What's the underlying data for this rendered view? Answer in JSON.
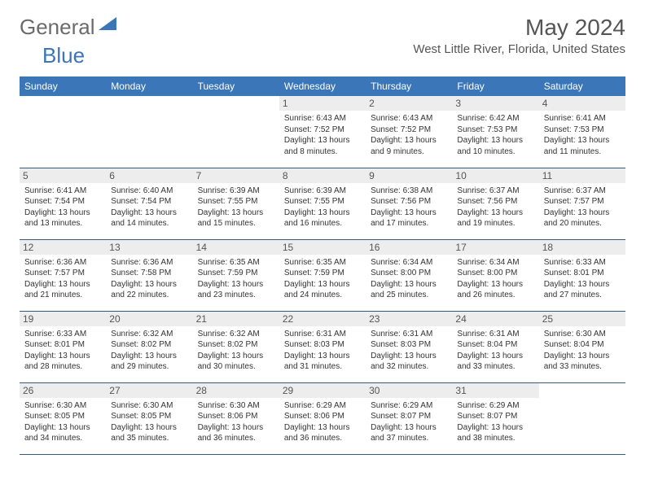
{
  "logo": {
    "text1": "General",
    "text2": "Blue",
    "triangle_color": "#3a76b8"
  },
  "title": "May 2024",
  "location": "West Little River, Florida, United States",
  "colors": {
    "header_bg": "#3a76b8",
    "header_text": "#ffffff",
    "daynum_bg": "#ededed",
    "cell_border": "#3a5a7a",
    "body_text": "#333333",
    "title_text": "#555555"
  },
  "typography": {
    "title_fontsize": 28,
    "location_fontsize": 15,
    "dayheader_fontsize": 12,
    "daynum_fontsize": 12,
    "cell_fontsize": 10
  },
  "calendar": {
    "type": "table",
    "columns": [
      "Sunday",
      "Monday",
      "Tuesday",
      "Wednesday",
      "Thursday",
      "Friday",
      "Saturday"
    ],
    "weeks": [
      [
        null,
        null,
        null,
        {
          "d": "1",
          "sunrise": "6:43 AM",
          "sunset": "7:52 PM",
          "daylight": "13 hours and 8 minutes."
        },
        {
          "d": "2",
          "sunrise": "6:43 AM",
          "sunset": "7:52 PM",
          "daylight": "13 hours and 9 minutes."
        },
        {
          "d": "3",
          "sunrise": "6:42 AM",
          "sunset": "7:53 PM",
          "daylight": "13 hours and 10 minutes."
        },
        {
          "d": "4",
          "sunrise": "6:41 AM",
          "sunset": "7:53 PM",
          "daylight": "13 hours and 11 minutes."
        }
      ],
      [
        {
          "d": "5",
          "sunrise": "6:41 AM",
          "sunset": "7:54 PM",
          "daylight": "13 hours and 13 minutes."
        },
        {
          "d": "6",
          "sunrise": "6:40 AM",
          "sunset": "7:54 PM",
          "daylight": "13 hours and 14 minutes."
        },
        {
          "d": "7",
          "sunrise": "6:39 AM",
          "sunset": "7:55 PM",
          "daylight": "13 hours and 15 minutes."
        },
        {
          "d": "8",
          "sunrise": "6:39 AM",
          "sunset": "7:55 PM",
          "daylight": "13 hours and 16 minutes."
        },
        {
          "d": "9",
          "sunrise": "6:38 AM",
          "sunset": "7:56 PM",
          "daylight": "13 hours and 17 minutes."
        },
        {
          "d": "10",
          "sunrise": "6:37 AM",
          "sunset": "7:56 PM",
          "daylight": "13 hours and 19 minutes."
        },
        {
          "d": "11",
          "sunrise": "6:37 AM",
          "sunset": "7:57 PM",
          "daylight": "13 hours and 20 minutes."
        }
      ],
      [
        {
          "d": "12",
          "sunrise": "6:36 AM",
          "sunset": "7:57 PM",
          "daylight": "13 hours and 21 minutes."
        },
        {
          "d": "13",
          "sunrise": "6:36 AM",
          "sunset": "7:58 PM",
          "daylight": "13 hours and 22 minutes."
        },
        {
          "d": "14",
          "sunrise": "6:35 AM",
          "sunset": "7:59 PM",
          "daylight": "13 hours and 23 minutes."
        },
        {
          "d": "15",
          "sunrise": "6:35 AM",
          "sunset": "7:59 PM",
          "daylight": "13 hours and 24 minutes."
        },
        {
          "d": "16",
          "sunrise": "6:34 AM",
          "sunset": "8:00 PM",
          "daylight": "13 hours and 25 minutes."
        },
        {
          "d": "17",
          "sunrise": "6:34 AM",
          "sunset": "8:00 PM",
          "daylight": "13 hours and 26 minutes."
        },
        {
          "d": "18",
          "sunrise": "6:33 AM",
          "sunset": "8:01 PM",
          "daylight": "13 hours and 27 minutes."
        }
      ],
      [
        {
          "d": "19",
          "sunrise": "6:33 AM",
          "sunset": "8:01 PM",
          "daylight": "13 hours and 28 minutes."
        },
        {
          "d": "20",
          "sunrise": "6:32 AM",
          "sunset": "8:02 PM",
          "daylight": "13 hours and 29 minutes."
        },
        {
          "d": "21",
          "sunrise": "6:32 AM",
          "sunset": "8:02 PM",
          "daylight": "13 hours and 30 minutes."
        },
        {
          "d": "22",
          "sunrise": "6:31 AM",
          "sunset": "8:03 PM",
          "daylight": "13 hours and 31 minutes."
        },
        {
          "d": "23",
          "sunrise": "6:31 AM",
          "sunset": "8:03 PM",
          "daylight": "13 hours and 32 minutes."
        },
        {
          "d": "24",
          "sunrise": "6:31 AM",
          "sunset": "8:04 PM",
          "daylight": "13 hours and 33 minutes."
        },
        {
          "d": "25",
          "sunrise": "6:30 AM",
          "sunset": "8:04 PM",
          "daylight": "13 hours and 33 minutes."
        }
      ],
      [
        {
          "d": "26",
          "sunrise": "6:30 AM",
          "sunset": "8:05 PM",
          "daylight": "13 hours and 34 minutes."
        },
        {
          "d": "27",
          "sunrise": "6:30 AM",
          "sunset": "8:05 PM",
          "daylight": "13 hours and 35 minutes."
        },
        {
          "d": "28",
          "sunrise": "6:30 AM",
          "sunset": "8:06 PM",
          "daylight": "13 hours and 36 minutes."
        },
        {
          "d": "29",
          "sunrise": "6:29 AM",
          "sunset": "8:06 PM",
          "daylight": "13 hours and 36 minutes."
        },
        {
          "d": "30",
          "sunrise": "6:29 AM",
          "sunset": "8:07 PM",
          "daylight": "13 hours and 37 minutes."
        },
        {
          "d": "31",
          "sunrise": "6:29 AM",
          "sunset": "8:07 PM",
          "daylight": "13 hours and 38 minutes."
        },
        null
      ]
    ]
  },
  "labels": {
    "sunrise": "Sunrise:",
    "sunset": "Sunset:",
    "daylight": "Daylight:"
  }
}
